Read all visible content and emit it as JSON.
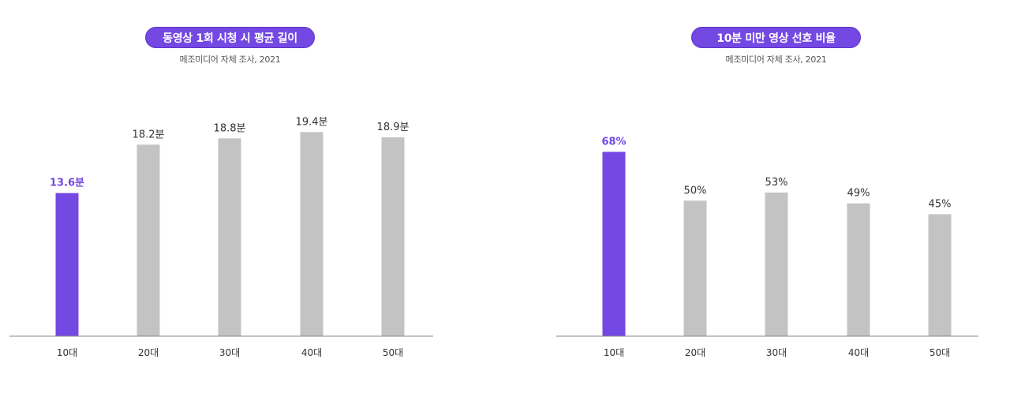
{
  "colors": {
    "accent": "#7448e3",
    "bar": "#c3c3c3",
    "axis": "#888888",
    "label": "#333333"
  },
  "chart_data": [
    {
      "type": "bar",
      "title": "동영상 1회 시청 시 평균 길이",
      "subtitle": "메조미디어 자체 조사, 2021",
      "categories": [
        "10대",
        "20대",
        "30대",
        "40대",
        "50대"
      ],
      "values": [
        13.6,
        18.2,
        18.8,
        19.4,
        18.9
      ],
      "value_labels": [
        "13.6분",
        "18.2분",
        "18.8분",
        "19.4분",
        "18.9분"
      ],
      "highlight_index": 0,
      "ylim": [
        0,
        23.7
      ],
      "grid": false,
      "xlabel": "",
      "ylabel": ""
    },
    {
      "type": "bar",
      "title": "10분 미만 영상 선호 비율",
      "subtitle": "메조미디어 자체 조사, 2021",
      "categories": [
        "10대",
        "20대",
        "30대",
        "40대",
        "50대"
      ],
      "values": [
        68,
        50,
        53,
        49,
        45
      ],
      "value_labels": [
        "68%",
        "50%",
        "53%",
        "49%",
        "45%"
      ],
      "highlight_index": 0,
      "ylim": [
        0,
        92
      ],
      "grid": false,
      "xlabel": "",
      "ylabel": ""
    }
  ]
}
